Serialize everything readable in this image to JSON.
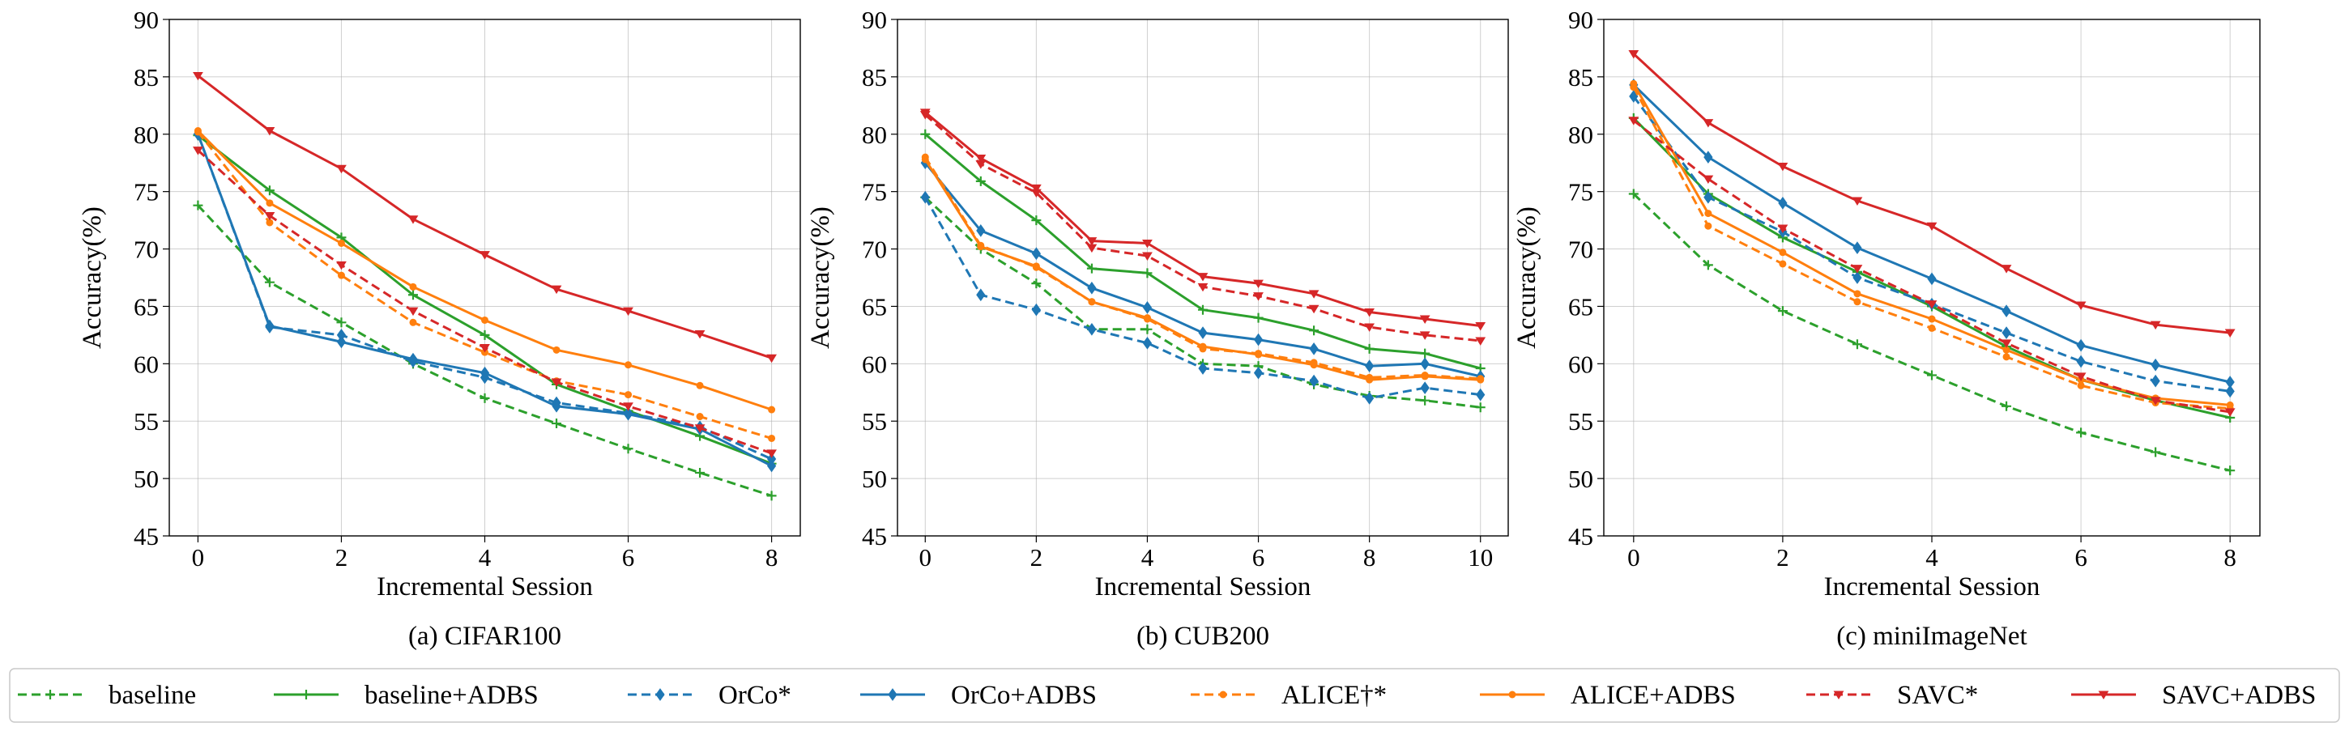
{
  "styles": {
    "baseline": {
      "color": "#2ca02c",
      "dash": true,
      "marker": "plus"
    },
    "baseline+ADBS": {
      "color": "#2ca02c",
      "dash": false,
      "marker": "plus"
    },
    "OrCo*": {
      "color": "#1f77b4",
      "dash": true,
      "marker": "diamond"
    },
    "OrCo+ADBS": {
      "color": "#1f77b4",
      "dash": false,
      "marker": "diamond"
    },
    "ALICE†*": {
      "color": "#ff7f0e",
      "dash": true,
      "marker": "circle"
    },
    "ALICE+ADBS": {
      "color": "#ff7f0e",
      "dash": false,
      "marker": "circle"
    },
    "SAVC*": {
      "color": "#d62728",
      "dash": true,
      "marker": "tri_down"
    },
    "SAVC+ADBS": {
      "color": "#d62728",
      "dash": false,
      "marker": "tri_down"
    }
  },
  "legend": {
    "position": "bottom",
    "entries": [
      "baseline",
      "baseline+ADBS",
      "OrCo*",
      "OrCo+ADBS",
      "ALICE†*",
      "ALICE+ADBS",
      "SAVC*",
      "SAVC+ADBS"
    ]
  },
  "chart_data": [
    {
      "type": "line",
      "title": "(a) CIFAR100",
      "xlabel": "Incremental Session",
      "ylabel": "Accuracy(%)",
      "xlim": [
        -0.4,
        8.4
      ],
      "ylim": [
        45,
        90
      ],
      "xticks": [
        0,
        2,
        4,
        6,
        8
      ],
      "yticks": [
        45,
        50,
        55,
        60,
        65,
        70,
        75,
        80,
        85,
        90
      ],
      "grid": true,
      "x": [
        0,
        1,
        2,
        3,
        4,
        5,
        6,
        7,
        8
      ],
      "series": [
        {
          "name": "baseline",
          "values": [
            73.8,
            67.1,
            63.6,
            60.0,
            57.0,
            54.8,
            52.6,
            50.5,
            48.5
          ]
        },
        {
          "name": "baseline+ADBS",
          "values": [
            79.9,
            75.1,
            71.0,
            66.0,
            62.5,
            58.2,
            55.9,
            53.7,
            51.3
          ]
        },
        {
          "name": "OrCo*",
          "values": [
            80.0,
            63.2,
            62.5,
            60.2,
            58.8,
            56.6,
            55.7,
            54.5,
            51.7
          ]
        },
        {
          "name": "OrCo+ADBS",
          "values": [
            80.0,
            63.3,
            61.9,
            60.4,
            59.2,
            56.3,
            55.6,
            54.3,
            51.1
          ]
        },
        {
          "name": "ALICE†*",
          "values": [
            80.2,
            72.3,
            67.7,
            63.6,
            61.0,
            58.5,
            57.3,
            55.4,
            53.5
          ]
        },
        {
          "name": "ALICE+ADBS",
          "values": [
            80.3,
            74.0,
            70.5,
            66.7,
            63.8,
            61.2,
            59.9,
            58.1,
            56.0
          ]
        },
        {
          "name": "SAVC*",
          "values": [
            78.6,
            72.9,
            68.6,
            64.6,
            61.4,
            58.4,
            56.3,
            54.4,
            52.2
          ]
        },
        {
          "name": "SAVC+ADBS",
          "values": [
            85.1,
            80.3,
            77.0,
            72.6,
            69.5,
            66.5,
            64.6,
            62.6,
            60.5
          ]
        }
      ]
    },
    {
      "type": "line",
      "title": "(b) CUB200",
      "xlabel": "Incremental Session",
      "ylabel": "Accuracy(%)",
      "xlim": [
        -0.5,
        10.5
      ],
      "ylim": [
        45,
        90
      ],
      "xticks": [
        0,
        2,
        4,
        6,
        8,
        10
      ],
      "yticks": [
        45,
        50,
        55,
        60,
        65,
        70,
        75,
        80,
        85,
        90
      ],
      "grid": true,
      "x": [
        0,
        1,
        2,
        3,
        4,
        5,
        6,
        7,
        8,
        9,
        10
      ],
      "series": [
        {
          "name": "baseline",
          "values": [
            74.5,
            70.0,
            67.0,
            63.0,
            63.0,
            60.0,
            59.8,
            58.2,
            57.2,
            56.8,
            56.2
          ]
        },
        {
          "name": "baseline+ADBS",
          "values": [
            80.0,
            75.9,
            72.5,
            68.3,
            67.9,
            64.7,
            64.0,
            62.9,
            61.3,
            60.9,
            59.6
          ]
        },
        {
          "name": "OrCo*",
          "values": [
            74.5,
            66.0,
            64.7,
            63.0,
            61.8,
            59.6,
            59.2,
            58.5,
            57.0,
            57.9,
            57.3
          ]
        },
        {
          "name": "OrCo+ADBS",
          "values": [
            77.5,
            71.6,
            69.6,
            66.6,
            64.9,
            62.7,
            62.1,
            61.3,
            59.8,
            60.0,
            58.9
          ]
        },
        {
          "name": "ALICE†*",
          "values": [
            78.0,
            70.3,
            68.4,
            65.4,
            63.9,
            61.3,
            60.9,
            60.1,
            58.8,
            59.0,
            58.7
          ]
        },
        {
          "name": "ALICE+ADBS",
          "values": [
            77.8,
            70.2,
            68.5,
            65.4,
            64.0,
            61.5,
            60.8,
            59.9,
            58.6,
            58.9,
            58.6
          ]
        },
        {
          "name": "SAVC*",
          "values": [
            81.7,
            77.4,
            74.9,
            70.1,
            69.4,
            66.7,
            65.9,
            64.8,
            63.2,
            62.5,
            62.0
          ]
        },
        {
          "name": "SAVC+ADBS",
          "values": [
            81.9,
            77.9,
            75.3,
            70.7,
            70.5,
            67.6,
            67.0,
            66.1,
            64.5,
            63.9,
            63.3
          ]
        }
      ]
    },
    {
      "type": "line",
      "title": "(c) miniImageNet",
      "xlabel": "Incremental Session",
      "ylabel": "Accuracy(%)",
      "xlim": [
        -0.4,
        8.4
      ],
      "ylim": [
        45,
        90
      ],
      "xticks": [
        0,
        2,
        4,
        6,
        8
      ],
      "yticks": [
        45,
        50,
        55,
        60,
        65,
        70,
        75,
        80,
        85,
        90
      ],
      "grid": true,
      "x": [
        0,
        1,
        2,
        3,
        4,
        5,
        6,
        7,
        8
      ],
      "series": [
        {
          "name": "baseline",
          "values": [
            74.8,
            68.6,
            64.6,
            61.7,
            59.0,
            56.3,
            54.0,
            52.3,
            50.7
          ]
        },
        {
          "name": "baseline+ADBS",
          "values": [
            81.4,
            74.8,
            71.0,
            68.0,
            65.0,
            61.5,
            58.6,
            56.8,
            55.3
          ]
        },
        {
          "name": "OrCo*",
          "values": [
            83.3,
            74.5,
            71.5,
            67.5,
            65.2,
            62.7,
            60.2,
            58.5,
            57.6
          ]
        },
        {
          "name": "OrCo+ADBS",
          "values": [
            84.3,
            78.0,
            74.0,
            70.1,
            67.4,
            64.6,
            61.6,
            59.9,
            58.4
          ]
        },
        {
          "name": "ALICE†*",
          "values": [
            84.1,
            72.0,
            68.7,
            65.4,
            63.1,
            60.6,
            58.1,
            56.6,
            56.1
          ]
        },
        {
          "name": "ALICE+ADBS",
          "values": [
            84.4,
            73.1,
            69.7,
            66.1,
            63.9,
            61.2,
            58.6,
            57.0,
            56.4
          ]
        },
        {
          "name": "SAVC*",
          "values": [
            81.2,
            76.1,
            71.8,
            68.3,
            65.2,
            61.8,
            58.9,
            56.8,
            55.8
          ]
        },
        {
          "name": "SAVC+ADBS",
          "values": [
            87.0,
            81.0,
            77.2,
            74.2,
            72.0,
            68.3,
            65.1,
            63.4,
            62.7
          ]
        }
      ]
    }
  ]
}
